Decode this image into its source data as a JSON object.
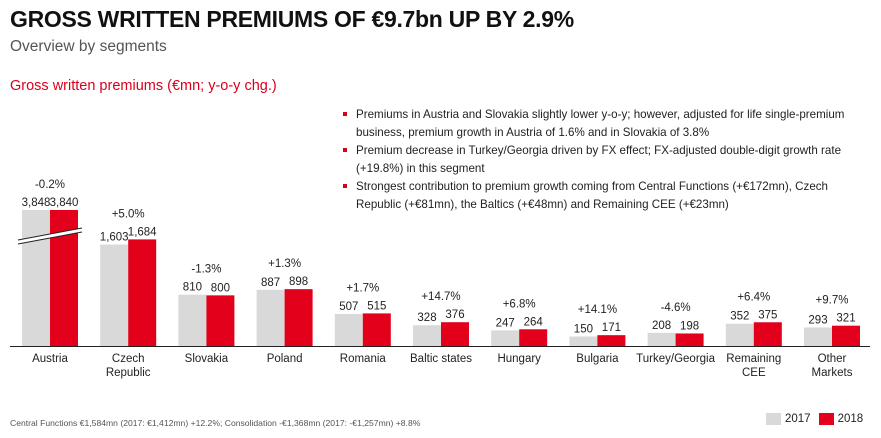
{
  "header": {
    "title": "GROSS WRITTEN PREMIUMS OF €9.7bn UP BY 2.9%",
    "subtitle": "Overview by segments"
  },
  "chart_label": "Gross written premiums (€mn; y-o-y chg.)",
  "bullets": [
    "Premiums in Austria and Slovakia slightly lower y-o-y; however, adjusted for life single-premium business, premium growth in Austria of 1.6% and in Slovakia of 3.8%",
    "Premium decrease in Turkey/Georgia driven by FX effect; FX-adjusted double-digit growth rate (+19.8%) in this segment",
    "Strongest contribution to premium growth coming from Central Functions (+€172mn), Czech Republic (+€81mn), the Baltics (+€48mn) and Remaining CEE (+€23mn)"
  ],
  "footnote": "Central Functions €1,584mn (2017: €1,412mn) +12.2%; Consolidation -€1,368mn (2017: -€1,257mn) +8.8%",
  "colors": {
    "y2017": "#d9d9d9",
    "y2018": "#e2001a",
    "accent": "#d9001b"
  },
  "chart_data": {
    "type": "bar",
    "categories": [
      "Austria",
      "Czech\nRepublic",
      "Slovakia",
      "Poland",
      "Romania",
      "Baltic states",
      "Hungary",
      "Bulgaria",
      "Turkey/Georgia",
      "Remaining\nCEE",
      "Other\nMarkets"
    ],
    "series": [
      {
        "name": "2017",
        "values": [
          3848,
          1603,
          810,
          887,
          507,
          328,
          247,
          150,
          208,
          352,
          293
        ],
        "labels": [
          "3,848",
          "1,603",
          "810",
          "887",
          "507",
          "328",
          "247",
          "150",
          "208",
          "352",
          "293"
        ]
      },
      {
        "name": "2018",
        "values": [
          3840,
          1684,
          800,
          898,
          515,
          376,
          264,
          171,
          198,
          375,
          321
        ],
        "labels": [
          "3,840",
          "1,684",
          "800",
          "898",
          "515",
          "376",
          "264",
          "171",
          "198",
          "375",
          "321"
        ]
      }
    ],
    "changes": [
      "-0.2%",
      "+5.0%",
      "-1.3%",
      "+1.3%",
      "+1.7%",
      "+14.7%",
      "+6.8%",
      "+14.1%",
      "-4.6%",
      "+6.4%",
      "+9.7%"
    ],
    "axis_break": {
      "category": "Austria"
    },
    "legend": {
      "position": "bottom-right",
      "entries": [
        "2017",
        "2018"
      ]
    }
  }
}
